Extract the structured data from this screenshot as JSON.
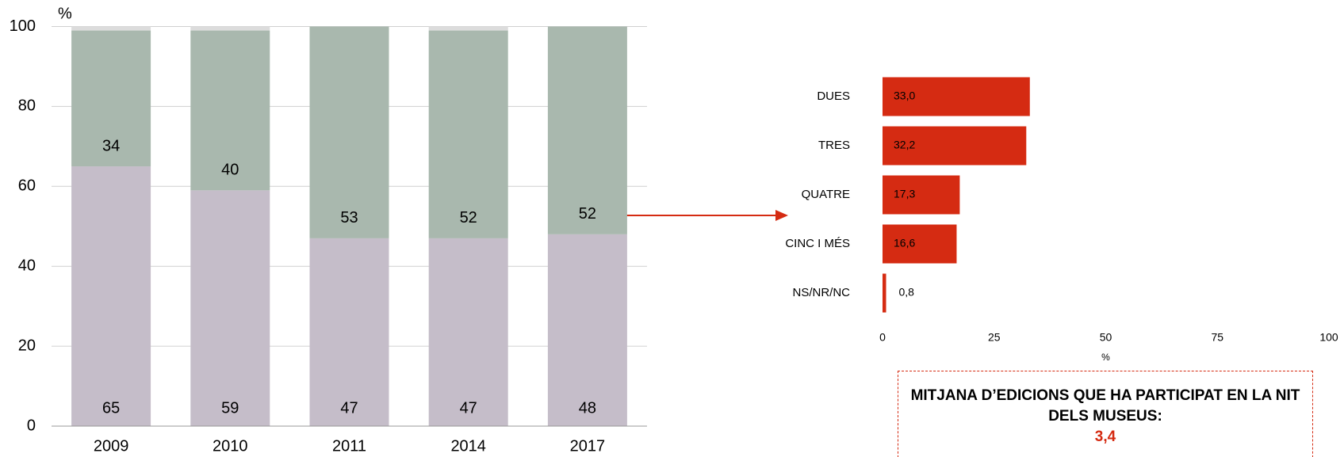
{
  "chart_data": [
    {
      "type": "bar",
      "stacked": true,
      "y_label": "%",
      "categories": [
        "2009",
        "2010",
        "2011",
        "2014",
        "2017"
      ],
      "series": [
        {
          "color": "#c5bdc9",
          "values": [
            65,
            59,
            47,
            47,
            48
          ]
        },
        {
          "color": "#a9b8ae",
          "values": [
            34,
            40,
            53,
            52,
            52
          ]
        },
        {
          "color": "#dcdcdc",
          "values": [
            1,
            1,
            0,
            1,
            0
          ]
        }
      ],
      "labeled_series": [
        0,
        1
      ],
      "ylim": [
        0,
        100
      ],
      "yticks": [
        0,
        20,
        40,
        60,
        80,
        100
      ],
      "grid": true
    },
    {
      "type": "bar",
      "orientation": "horizontal",
      "x_label": "%",
      "categories": [
        "DUES",
        "TRES",
        "QUATRE",
        "CINC I MÉS",
        "NS/NR/NC"
      ],
      "values": [
        33.0,
        32.2,
        17.3,
        16.6,
        0.8
      ],
      "value_labels": [
        "33,0",
        "32,2",
        "17,3",
        "16,6",
        "0,8"
      ],
      "color": "#d52b12",
      "xlim": [
        0,
        100
      ],
      "xticks": [
        0,
        25,
        50,
        75,
        100
      ],
      "grid": false,
      "annotation": "MITJANA D’EDICIONS QUE HA PARTICIPAT EN LA NIT DELS MUSEUS:",
      "annotation_value": {
        "value": 3.4,
        "label": "3,4"
      }
    }
  ]
}
